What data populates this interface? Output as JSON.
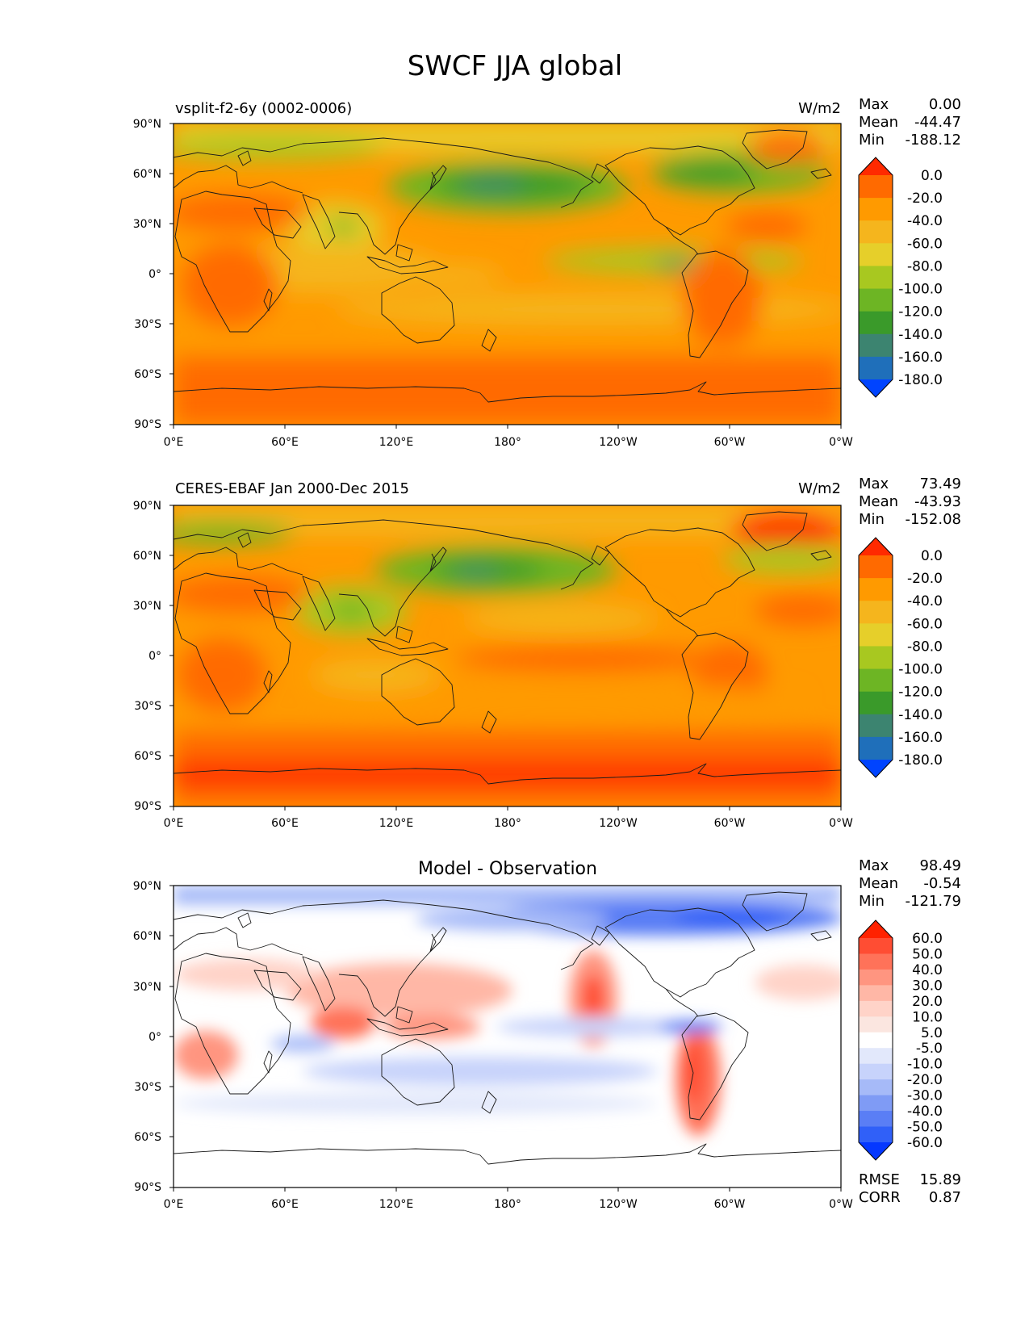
{
  "figure": {
    "title": "SWCF JJA global"
  },
  "lat_ticks": [
    "90°N",
    "60°N",
    "30°N",
    "0°",
    "30°S",
    "60°S",
    "90°S"
  ],
  "lon_ticks": [
    "0°E",
    "60°E",
    "120°E",
    "180°",
    "120°W",
    "60°W",
    "0°W"
  ],
  "panels": [
    {
      "left_title": "vsplit-f2-6y (0002-0006)",
      "center_title": "",
      "units": "W/m2",
      "stats": [
        {
          "label": "Max",
          "value": "0.00"
        },
        {
          "label": "Mean",
          "value": "-44.47"
        },
        {
          "label": "Min",
          "value": "-188.12"
        }
      ],
      "colorbar": {
        "labels": [
          "0.0",
          "-20.0",
          "-40.0",
          "-60.0",
          "-80.0",
          "-100.0",
          "-120.0",
          "-140.0",
          "-160.0",
          "-180.0"
        ],
        "colors": [
          "#ff2a00",
          "#ff6a00",
          "#ff9a00",
          "#f5b51d",
          "#e6cf2a",
          "#a8c820",
          "#6db524",
          "#3a9a2a",
          "#3c8470",
          "#1f6fba",
          "#0044ff"
        ]
      },
      "footer": []
    },
    {
      "left_title": "CERES-EBAF Jan 2000-Dec 2015",
      "center_title": "",
      "units": "W/m2",
      "stats": [
        {
          "label": "Max",
          "value": "73.49"
        },
        {
          "label": "Mean",
          "value": "-43.93"
        },
        {
          "label": "Min",
          "value": "-152.08"
        }
      ],
      "colorbar": {
        "labels": [
          "0.0",
          "-20.0",
          "-40.0",
          "-60.0",
          "-80.0",
          "-100.0",
          "-120.0",
          "-140.0",
          "-160.0",
          "-180.0"
        ],
        "colors": [
          "#ff2a00",
          "#ff6a00",
          "#ff9a00",
          "#f5b51d",
          "#e6cf2a",
          "#a8c820",
          "#6db524",
          "#3a9a2a",
          "#3c8470",
          "#1f6fba",
          "#0044ff"
        ]
      },
      "footer": []
    },
    {
      "left_title": "",
      "center_title": "Model - Observation",
      "units": "",
      "stats": [
        {
          "label": "Max",
          "value": "98.49"
        },
        {
          "label": "Mean",
          "value": "-0.54"
        },
        {
          "label": "Min",
          "value": "-121.79"
        }
      ],
      "colorbar": {
        "labels": [
          "60.0",
          "50.0",
          "40.0",
          "30.0",
          "20.0",
          "10.0",
          "5.0",
          "-5.0",
          "-10.0",
          "-20.0",
          "-30.0",
          "-40.0",
          "-50.0",
          "-60.0"
        ],
        "colors": [
          "#ff2200",
          "#ff4d33",
          "#ff7259",
          "#ff9580",
          "#ffb7a6",
          "#ffd3c8",
          "#fbe6e0",
          "#ffffff",
          "#e2e8fb",
          "#c7d3fb",
          "#a6baf8",
          "#7f9bf5",
          "#5a7ef5",
          "#3060f8",
          "#0538ff"
        ]
      },
      "footer": [
        {
          "label": "RMSE",
          "value": "15.89"
        },
        {
          "label": "CORR",
          "value": "0.87"
        }
      ]
    }
  ]
}
